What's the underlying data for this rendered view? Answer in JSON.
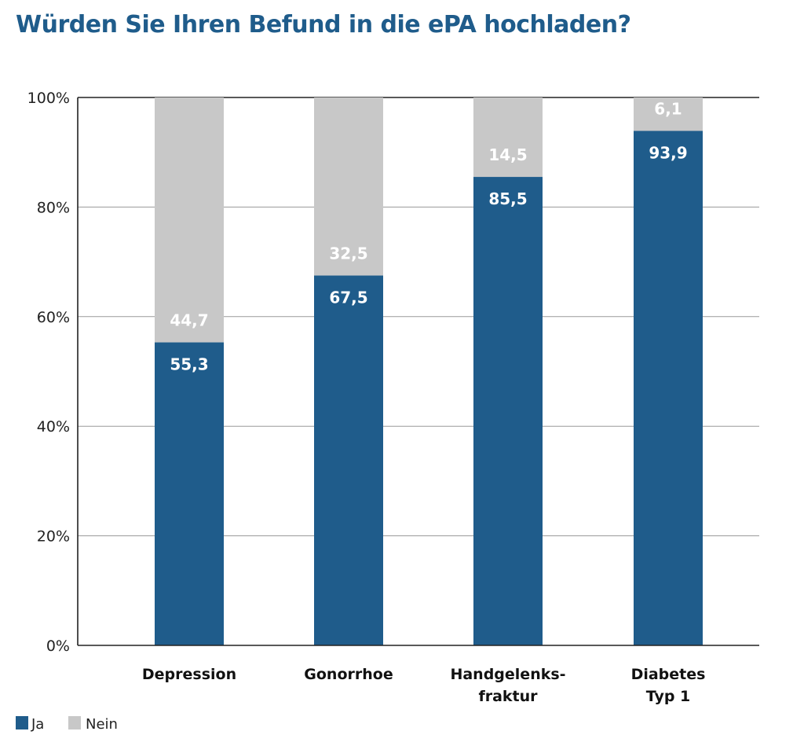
{
  "title": "Würden Sie Ihren Befund in die ePA hochladen?",
  "colors": {
    "ja": "#1f5c8b",
    "nein": "#c8c8c8",
    "title": "#1f5c8b"
  },
  "chart_data": {
    "type": "bar",
    "stacked": true,
    "title": "Würden Sie Ihren Befund in die ePA hochladen?",
    "categories": [
      [
        "Depression"
      ],
      [
        "Gonorrhoe"
      ],
      [
        "Handgelenks-",
        "fraktur"
      ],
      [
        "Diabetes",
        "Typ 1"
      ]
    ],
    "series": [
      {
        "name": "Ja",
        "values": [
          55.3,
          67.5,
          85.5,
          93.9
        ],
        "labels": [
          "55,3",
          "67,5",
          "85,5",
          "93,9"
        ],
        "color": "#1f5c8b"
      },
      {
        "name": "Nein",
        "values": [
          44.7,
          32.5,
          14.5,
          6.1
        ],
        "labels": [
          "44,7",
          "32,5",
          "14,5",
          "6,1"
        ],
        "color": "#c8c8c8"
      }
    ],
    "ylim": [
      0,
      100
    ],
    "yticks": [
      0,
      20,
      40,
      60,
      80,
      100
    ],
    "ytick_labels": [
      "0%",
      "20%",
      "40%",
      "60%",
      "80%",
      "100%"
    ],
    "grid": true,
    "legend_position": "bottom-left"
  }
}
